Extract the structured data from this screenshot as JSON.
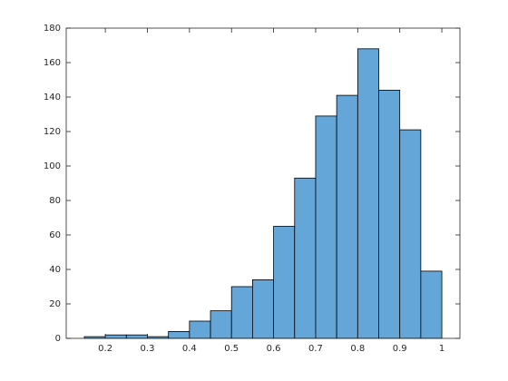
{
  "chart_data": {
    "type": "histogram",
    "bins": [
      0.15,
      0.2,
      0.25,
      0.3,
      0.35,
      0.4,
      0.45,
      0.5,
      0.55,
      0.6,
      0.65,
      0.7,
      0.75,
      0.8,
      0.85,
      0.9,
      0.95,
      1.0
    ],
    "values": [
      1,
      2,
      2,
      1,
      4,
      10,
      16,
      30,
      34,
      65,
      93,
      129,
      141,
      168,
      144,
      121,
      39
    ],
    "color": "#65a6d8",
    "xlim": [
      0.107,
      1.043
    ],
    "xticks": [
      0.2,
      0.3,
      0.4,
      0.5,
      0.6,
      0.7,
      0.8,
      0.9,
      1
    ],
    "ylim": [
      0,
      180
    ],
    "yticks": [
      0,
      20,
      40,
      60,
      80,
      100,
      120,
      140,
      160,
      180
    ]
  }
}
